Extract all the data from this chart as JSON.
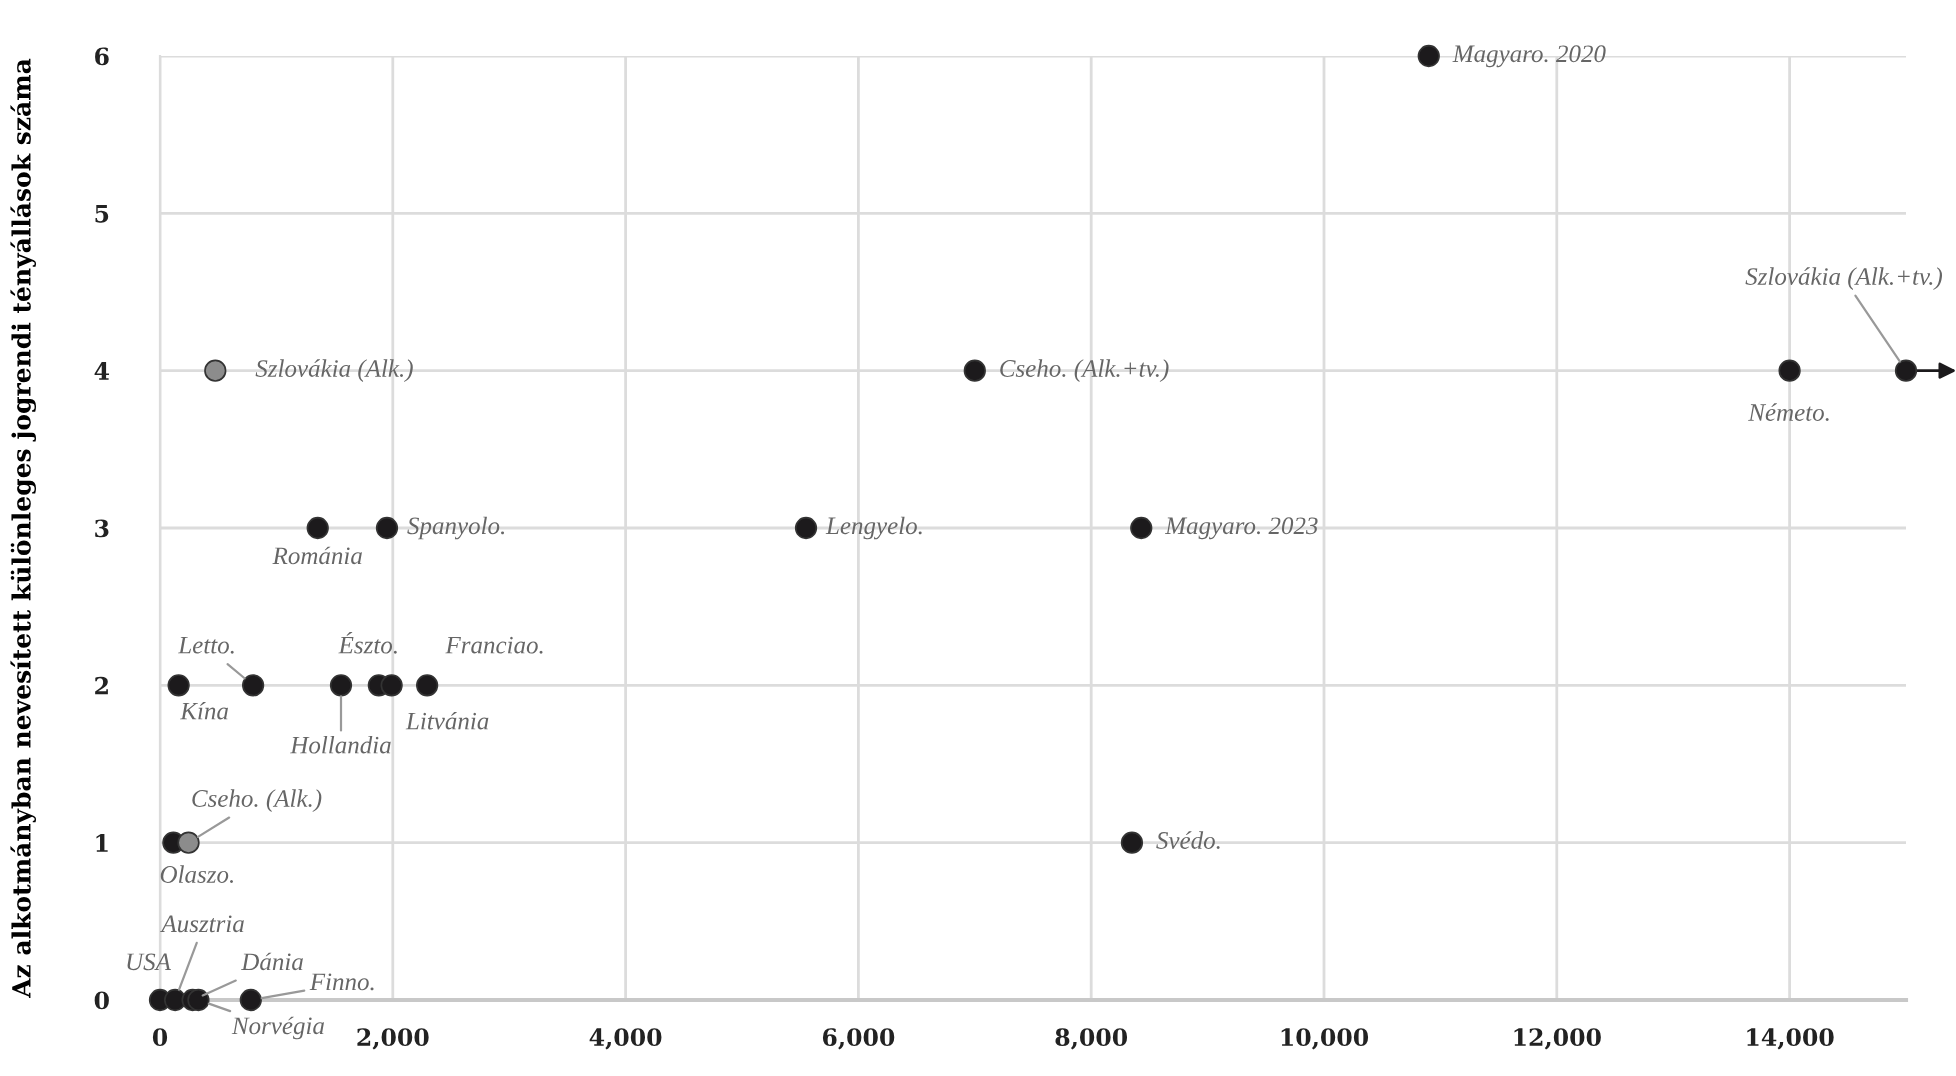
{
  "chart_data": {
    "type": "scatter",
    "ylabel": "Az alkotmányban nevesített különleges jogrendi tényállások száma",
    "x": [
      10900,
      15000,
      14000,
      7000,
      475,
      1355,
      1950,
      5550,
      8430,
      160,
      800,
      1555,
      1880,
      1990,
      2295,
      115,
      245,
      8350,
      0,
      130,
      280,
      330,
      780
    ],
    "values": [
      6,
      4,
      4,
      4,
      4,
      3,
      3,
      3,
      3,
      2,
      2,
      2,
      2,
      2,
      2,
      1,
      1,
      1,
      0,
      0,
      0,
      0,
      0
    ],
    "colors": [
      "#1c1a1c",
      "#1c1a1c",
      "#1c1a1c",
      "#1c1a1c",
      "#8c8c8c",
      "#1c1a1c",
      "#1c1a1c",
      "#1c1a1c",
      "#1c1a1c",
      "#1c1a1c",
      "#1c1a1c",
      "#1c1a1c",
      "#1c1a1c",
      "#1c1a1c",
      "#1c1a1c",
      "#1c1a1c",
      "#8c8c8c",
      "#1c1a1c",
      "#1c1a1c",
      "#1c1a1c",
      "#1c1a1c",
      "#1c1a1c",
      "#1c1a1c"
    ],
    "annotations": [
      {
        "text": "Magyaro. 2020",
        "x": 10900,
        "y": 6
      },
      {
        "text": "Szlovákia (Alk.+tv.)",
        "x": 15000,
        "y": 4
      },
      {
        "text": "Németo.",
        "x": 14000,
        "y": 4
      },
      {
        "text": "Cseho. (Alk.+tv.)",
        "x": 7000,
        "y": 4
      },
      {
        "text": "Szlovákia (Alk.)",
        "x": 475,
        "y": 4
      },
      {
        "text": "Románia",
        "x": 1355,
        "y": 3
      },
      {
        "text": "Spanyolo.",
        "x": 1950,
        "y": 3
      },
      {
        "text": "Lengyelo.",
        "x": 5550,
        "y": 3
      },
      {
        "text": "Magyaro. 2023",
        "x": 8430,
        "y": 3
      },
      {
        "text": "Kína",
        "x": 160,
        "y": 2
      },
      {
        "text": "Letto.",
        "x": 800,
        "y": 2
      },
      {
        "text": "Hollandia",
        "x": 1555,
        "y": 2
      },
      {
        "text": "Észto.",
        "x": 1880,
        "y": 2
      },
      {
        "text": "Litvánia",
        "x": 1990,
        "y": 2
      },
      {
        "text": "Franciao.",
        "x": 2295,
        "y": 2
      },
      {
        "text": "Olaszo.",
        "x": 115,
        "y": 1
      },
      {
        "text": "Cseho. (Alk.)",
        "x": 245,
        "y": 1
      },
      {
        "text": "Svédo.",
        "x": 8350,
        "y": 1
      },
      {
        "text": "USA",
        "x": 0,
        "y": 0
      },
      {
        "text": "Ausztria",
        "x": 130,
        "y": 0
      },
      {
        "text": "Dánia",
        "x": 280,
        "y": 0
      },
      {
        "text": "Norvégia",
        "x": 330,
        "y": 0
      },
      {
        "text": "Finno.",
        "x": 780,
        "y": 0
      }
    ],
    "xlim": [
      0,
      15000
    ],
    "ylim": [
      0,
      6
    ],
    "xticks": [
      0,
      {
        "value": 2000,
        "label": "2,000"
      },
      {
        "value": 4000,
        "label": "4,000"
      },
      {
        "value": 6000,
        "label": "6,000"
      },
      {
        "value": 8000,
        "label": "8,000"
      },
      {
        "value": 10000,
        "label": "10,000"
      },
      {
        "value": 12000,
        "label": "12,000"
      },
      {
        "value": 14000,
        "label": "14,000"
      }
    ],
    "yticks": [
      0,
      1,
      2,
      3,
      4,
      5,
      6
    ],
    "grid": true,
    "marker": "circle"
  }
}
